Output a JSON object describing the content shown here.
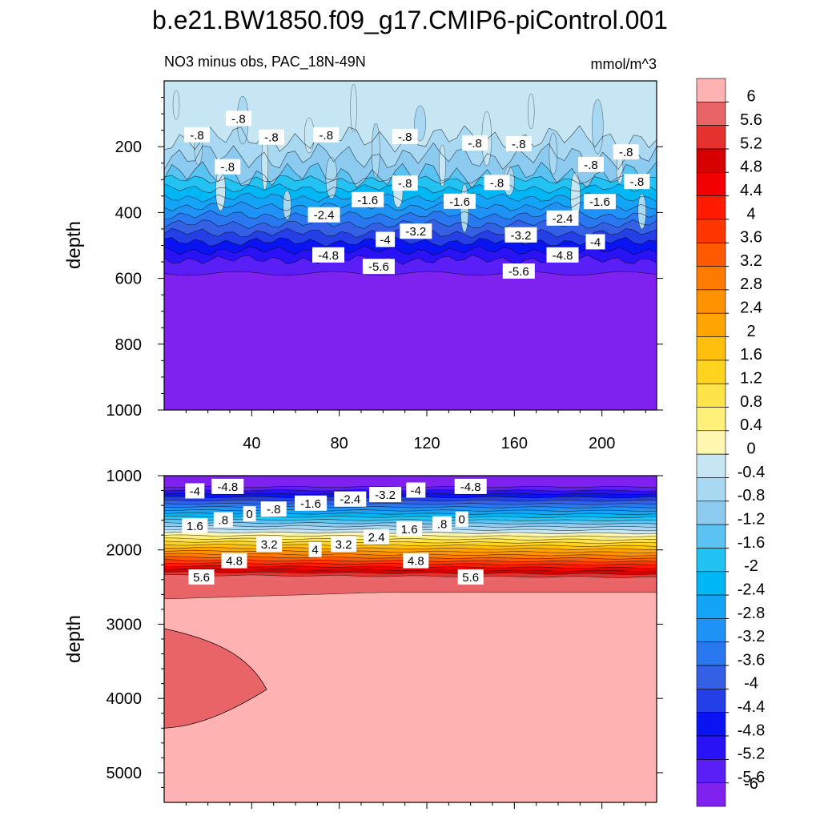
{
  "title": "b.e21.BW1850.f09_g17.CMIP6-piControl.001",
  "colors": {
    "neg": [
      "#7f22f0",
      "#5a1ef7",
      "#2a12f7",
      "#0a14f2",
      "#243fe6",
      "#3460e6",
      "#2a78f0",
      "#1e92f5",
      "#13a3f7",
      "#00b7f5",
      "#22c3f2",
      "#5ac3f2",
      "#8ccaf0",
      "#a9d8f2",
      "#c6e6f4"
    ],
    "pos": [
      "#fff6b0",
      "#fff07a",
      "#ffe34a",
      "#ffd31e",
      "#ffbf0a",
      "#ffa400",
      "#ff9200",
      "#ff7a00",
      "#ff5a00",
      "#ff3600",
      "#ff1a00",
      "#f20000",
      "#d70000",
      "#e6322e",
      "#e86466",
      "#ffb2b2"
    ]
  },
  "chart_data": [
    {
      "type": "heatmap",
      "name": "upper-panel",
      "title_left": "NO3 minus obs, PAC_18N-49N",
      "title_right": "mmol/m^3",
      "ylabel": "depth",
      "ylim": [
        0,
        1000
      ],
      "xlim": [
        0,
        225
      ],
      "x_ticks": [
        40,
        80,
        120,
        160,
        200
      ],
      "y_ticks": [
        200,
        400,
        600,
        800,
        1000
      ],
      "contour_labels": [
        {
          "text": "-.8",
          "x": 34,
          "y": 115
        },
        {
          "text": "-.8",
          "x": 15,
          "y": 165
        },
        {
          "text": "-.8",
          "x": 49,
          "y": 172
        },
        {
          "text": "-.8",
          "x": 74,
          "y": 165
        },
        {
          "text": "-.8",
          "x": 110,
          "y": 170
        },
        {
          "text": "-.8",
          "x": 142,
          "y": 190
        },
        {
          "text": "-.8",
          "x": 162,
          "y": 192
        },
        {
          "text": "-.8",
          "x": 29,
          "y": 262
        },
        {
          "text": "-.8",
          "x": 195,
          "y": 255
        },
        {
          "text": "-.8",
          "x": 211,
          "y": 217
        },
        {
          "text": "-.8",
          "x": 110,
          "y": 312
        },
        {
          "text": "-.8",
          "x": 152,
          "y": 310
        },
        {
          "text": "-.8",
          "x": 216,
          "y": 307
        },
        {
          "text": "-1.6",
          "x": 93,
          "y": 362
        },
        {
          "text": "-1.6",
          "x": 135,
          "y": 367
        },
        {
          "text": "-1.6",
          "x": 199,
          "y": 368
        },
        {
          "text": "-2.4",
          "x": 73,
          "y": 408
        },
        {
          "text": "-2.4",
          "x": 182,
          "y": 418
        },
        {
          "text": "-3.2",
          "x": 115,
          "y": 458
        },
        {
          "text": "-3.2",
          "x": 163,
          "y": 469
        },
        {
          "text": "-4",
          "x": 101,
          "y": 483
        },
        {
          "text": "-4",
          "x": 197,
          "y": 490
        },
        {
          "text": "-4.8",
          "x": 75,
          "y": 530
        },
        {
          "text": "-4.8",
          "x": 182,
          "y": 530
        },
        {
          "text": "-5.6",
          "x": 98,
          "y": 565
        },
        {
          "text": "-5.6",
          "x": 162,
          "y": 579
        }
      ]
    },
    {
      "type": "heatmap",
      "name": "lower-panel",
      "ylabel": "depth",
      "ylim": [
        1000,
        5400
      ],
      "xlim": [
        0,
        225
      ],
      "y_ticks": [
        1000,
        2000,
        3000,
        4000,
        5000
      ],
      "contour_labels": [
        {
          "text": "-4",
          "x": 14,
          "y": 1210
        },
        {
          "text": "-4.8",
          "x": 29,
          "y": 1150
        },
        {
          "text": "-.8",
          "x": 50,
          "y": 1455
        },
        {
          "text": "-1.6",
          "x": 67,
          "y": 1375
        },
        {
          "text": "-2.4",
          "x": 85,
          "y": 1320
        },
        {
          "text": "-3.2",
          "x": 101,
          "y": 1260
        },
        {
          "text": "-4",
          "x": 115,
          "y": 1200
        },
        {
          "text": "-4.8",
          "x": 140,
          "y": 1150
        },
        {
          "text": "0",
          "x": 39,
          "y": 1520
        },
        {
          "text": "0",
          "x": 136,
          "y": 1590
        },
        {
          "text": ".8",
          "x": 27,
          "y": 1600
        },
        {
          "text": ".8",
          "x": 127,
          "y": 1655
        },
        {
          "text": "1.6",
          "x": 14,
          "y": 1680
        },
        {
          "text": "1.6",
          "x": 112,
          "y": 1720
        },
        {
          "text": "2.4",
          "x": 97,
          "y": 1830
        },
        {
          "text": "3.2",
          "x": 48,
          "y": 1930
        },
        {
          "text": "3.2",
          "x": 82,
          "y": 1930
        },
        {
          "text": "4",
          "x": 69,
          "y": 2000
        },
        {
          "text": "4.8",
          "x": 32,
          "y": 2150
        },
        {
          "text": "4.8",
          "x": 115,
          "y": 2150
        },
        {
          "text": "5.6",
          "x": 17,
          "y": 2370
        },
        {
          "text": "5.6",
          "x": 140,
          "y": 2370
        }
      ]
    }
  ],
  "colorbar": {
    "labels": [
      "6",
      "5.6",
      "5.2",
      "4.8",
      "4.4",
      "4",
      "3.6",
      "3.2",
      "2.8",
      "2.4",
      "2",
      "1.6",
      "1.2",
      "0.8",
      "0.4",
      "0",
      "-0.4",
      "-0.8",
      "-1.2",
      "-1.6",
      "-2",
      "-2.4",
      "-2.8",
      "-3.2",
      "-3.6",
      "-4",
      "-4.4",
      "-4.8",
      "-5.2",
      "-5.6",
      "-6"
    ],
    "colors": [
      "#ffb2b2",
      "#e86466",
      "#e6322e",
      "#d70000",
      "#f20000",
      "#ff1a00",
      "#ff3600",
      "#ff5a00",
      "#ff7a00",
      "#ff9200",
      "#ffa400",
      "#ffbf0a",
      "#ffd31e",
      "#ffe34a",
      "#fff07a",
      "#fff6b0",
      "#c6e6f4",
      "#a9d8f2",
      "#8ccaf0",
      "#5ac3f2",
      "#22c3f2",
      "#00b7f5",
      "#13a3f7",
      "#1e92f5",
      "#2a78f0",
      "#3460e6",
      "#243fe6",
      "#0a14f2",
      "#2a12f7",
      "#5a1ef7",
      "#7f22f0"
    ]
  }
}
